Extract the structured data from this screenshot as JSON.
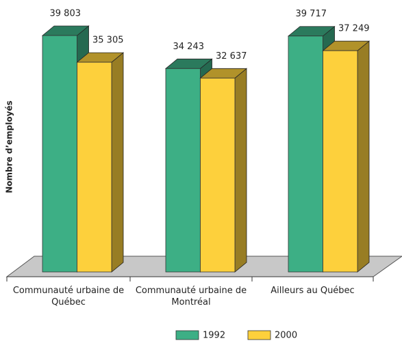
{
  "chart_data": {
    "type": "bar",
    "y_label": "Nombre d’employés",
    "categories": [
      "Communauté urbaine de Québec",
      "Communauté urbaine de Montréal",
      "Ailleurs au Québec"
    ],
    "series": [
      {
        "name": "1992",
        "color": "#3daf85",
        "values": [
          39803,
          34243,
          39717
        ],
        "value_labels": [
          "39 803",
          "34 243",
          "39 717"
        ]
      },
      {
        "name": "2000",
        "color": "#fdd03c",
        "values": [
          35305,
          32637,
          37249
        ],
        "value_labels": [
          "35 305",
          "32 637",
          "37 249"
        ]
      }
    ],
    "legend": "bottom"
  }
}
